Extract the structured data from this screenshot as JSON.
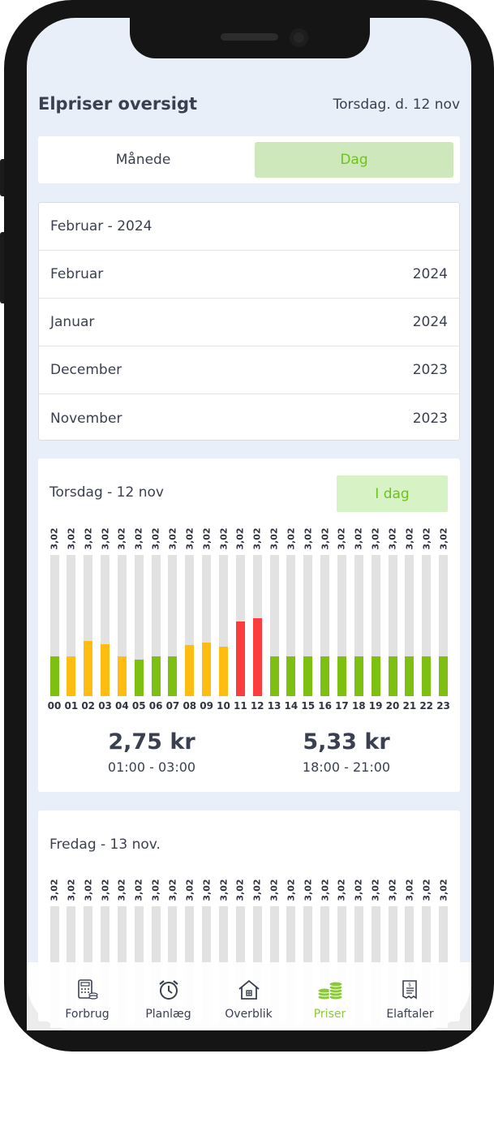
{
  "header": {
    "title": "Elpriser oversigt",
    "date": "Torsdag. d. 12 nov"
  },
  "segment": {
    "month_label": "Månede",
    "day_label": "Dag",
    "active": "day"
  },
  "month_list": {
    "selected": "Februar - 2024",
    "rows": [
      {
        "month": "Februar",
        "year": "2024"
      },
      {
        "month": "Januar",
        "year": "2024"
      },
      {
        "month": "December",
        "year": "2023"
      },
      {
        "month": "November",
        "year": "2023"
      }
    ]
  },
  "colors": {
    "green": "#7cc012",
    "yellow": "#ffbd12",
    "red": "#fb3d3d",
    "track": "#e2e2e2",
    "accent": "#6cc41a"
  },
  "days": [
    {
      "title": "Torsdag - 12 nov",
      "today_label": "I dag",
      "hours": [
        "00",
        "01",
        "02",
        "03",
        "04",
        "05",
        "06",
        "07",
        "08",
        "09",
        "10",
        "11",
        "12",
        "13",
        "14",
        "15",
        "16",
        "17",
        "18",
        "19",
        "20",
        "21",
        "22",
        "23"
      ],
      "price_labels": [
        "3,02",
        "3,02",
        "3,02",
        "3,02",
        "3,02",
        "3,02",
        "3,02",
        "3,02",
        "3,02",
        "3,02",
        "3,02",
        "3,02",
        "3,02",
        "3,02",
        "3,02",
        "3,02",
        "3,02",
        "3,02",
        "3,02",
        "3,02",
        "3,02",
        "3,02",
        "3,02",
        "3,02"
      ],
      "levels": [
        0.28,
        0.28,
        0.39,
        0.37,
        0.28,
        0.26,
        0.28,
        0.28,
        0.36,
        0.38,
        0.35,
        0.53,
        0.55,
        0.28,
        0.28,
        0.28,
        0.28,
        0.28,
        0.28,
        0.28,
        0.28,
        0.28,
        0.28,
        0.28
      ],
      "level_colors": [
        "green",
        "yellow",
        "yellow",
        "yellow",
        "yellow",
        "green",
        "green",
        "green",
        "yellow",
        "yellow",
        "yellow",
        "red",
        "red",
        "green",
        "green",
        "green",
        "green",
        "green",
        "green",
        "green",
        "green",
        "green",
        "green",
        "green"
      ],
      "low": {
        "price": "2,75 kr",
        "range": "01:00 - 03:00"
      },
      "high": {
        "price": "5,33 kr",
        "range": "18:00 - 21:00"
      }
    },
    {
      "title": "Fredag - 13 nov.",
      "price_labels": [
        "3,02",
        "3,02",
        "3,02",
        "3,02",
        "3,02",
        "3,02",
        "3,02",
        "3,02",
        "3,02",
        "3,02",
        "3,02",
        "3,02",
        "3,02",
        "3,02",
        "3,02",
        "3,02",
        "3,02",
        "3,02",
        "3,02",
        "3,02",
        "3,02",
        "3,02",
        "3,02",
        "3,02"
      ]
    }
  ],
  "tabs": [
    {
      "label": "Forbrug",
      "icon": "calculator-icon"
    },
    {
      "label": "Planlæg",
      "icon": "alarm-clock-icon"
    },
    {
      "label": "Overblik",
      "icon": "house-icon"
    },
    {
      "label": "Priser",
      "icon": "coins-icon",
      "active": true
    },
    {
      "label": "Elaftaler",
      "icon": "receipt-icon"
    }
  ]
}
